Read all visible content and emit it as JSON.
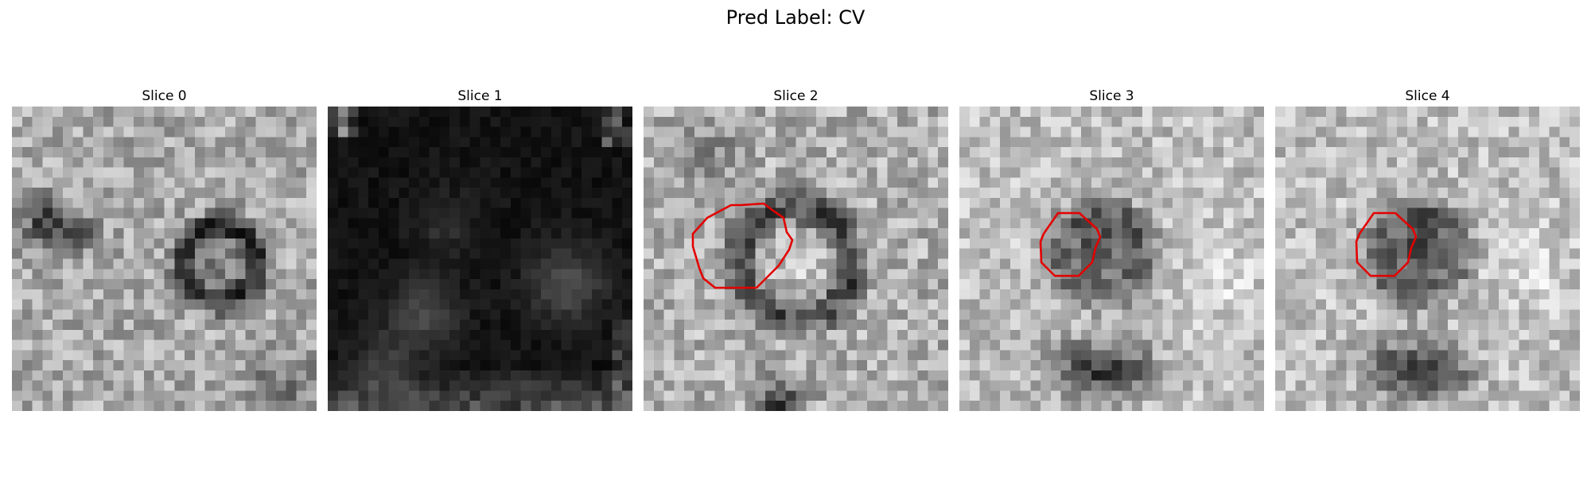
{
  "figure": {
    "title": "Pred Label: CV"
  },
  "panels": [
    {
      "title": "Slice 0",
      "brightness": "light",
      "contour": false
    },
    {
      "title": "Slice 1",
      "brightness": "dark",
      "contour": false
    },
    {
      "title": "Slice 2",
      "brightness": "light",
      "contour": true
    },
    {
      "title": "Slice 3",
      "brightness": "light",
      "contour": true
    },
    {
      "title": "Slice 4",
      "brightness": "light",
      "contour": true
    }
  ],
  "colors": {
    "contour": "#e30000",
    "background": "#ffffff"
  }
}
